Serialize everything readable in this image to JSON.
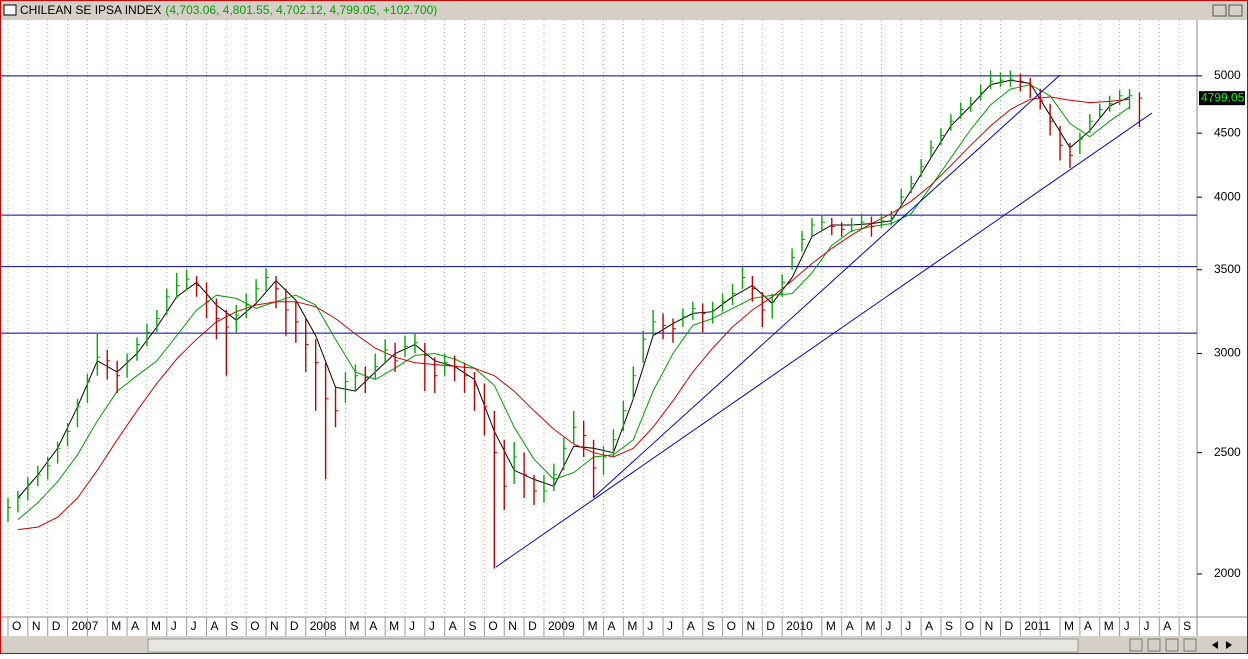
{
  "window": {
    "title": "CHILEAN SE IPSA INDEX",
    "quote": "(4,703.06, 4,801.55, 4,702.12, 4,799.05, +102.700)"
  },
  "chart_data": {
    "type": "ohlc",
    "log_scale": true,
    "last_price": 4799.05,
    "ylim": [
      1858,
      5541
    ],
    "yticks": [
      2000,
      2500,
      3000,
      3500,
      4000,
      4500,
      5000
    ],
    "up_color": "#00a800",
    "down_color": "#c00000",
    "hline_color": "#000099",
    "hlines": [
      5000,
      3870,
      3520,
      3115
    ],
    "x_labels": [
      "O",
      "N",
      "D",
      "2007",
      null,
      "M",
      "A",
      "M",
      "J",
      "J",
      "A",
      "S",
      "O",
      "N",
      "D",
      "2008",
      null,
      "M",
      "A",
      "M",
      "J",
      "J",
      "A",
      "S",
      "O",
      "N",
      "D",
      "2009",
      null,
      "M",
      "A",
      "M",
      "J",
      "J",
      "A",
      "S",
      "O",
      "N",
      "D",
      "2010",
      null,
      "M",
      "A",
      "M",
      "J",
      "J",
      "A",
      "S",
      "O",
      "N",
      "D",
      "2011",
      null,
      "M",
      "A",
      "M",
      "J",
      "J",
      "A",
      "S"
    ],
    "close": [
      2260,
      2300,
      2360,
      2400,
      2440,
      2520,
      2600,
      2720,
      2850,
      2980,
      2960,
      2880,
      2960,
      3050,
      3120,
      3200,
      3330,
      3400,
      3440,
      3400,
      3300,
      3200,
      3150,
      3220,
      3280,
      3380,
      3450,
      3380,
      3250,
      3180,
      3050,
      2950,
      2760,
      2700,
      2850,
      2880,
      2870,
      2930,
      3020,
      2960,
      3040,
      3060,
      2990,
      2880,
      2950,
      2930,
      2880,
      2830,
      2720,
      2500,
      2350,
      2480,
      2400,
      2330,
      2330,
      2400,
      2520,
      2620,
      2580,
      2430,
      2480,
      2560,
      2700,
      2880,
      3080,
      3180,
      3160,
      3140,
      3210,
      3260,
      3230,
      3250,
      3300,
      3350,
      3450,
      3380,
      3250,
      3300,
      3420,
      3580,
      3700,
      3800,
      3820,
      3790,
      3770,
      3800,
      3820,
      3790,
      3830,
      3850,
      4000,
      4100,
      4230,
      4380,
      4480,
      4600,
      4700,
      4750,
      4850,
      4950,
      4960,
      4970,
      4950,
      4900,
      4780,
      4600,
      4400,
      4320,
      4450,
      4600,
      4700,
      4750,
      4820,
      4820,
      4799
    ],
    "high": [
      2300,
      2330,
      2390,
      2440,
      2480,
      2550,
      2640,
      2760,
      2890,
      3110,
      3020,
      2960,
      3000,
      3090,
      3170,
      3250,
      3380,
      3480,
      3500,
      3460,
      3420,
      3320,
      3250,
      3280,
      3350,
      3440,
      3510,
      3460,
      3380,
      3300,
      3200,
      3080,
      2950,
      2820,
      2900,
      2940,
      2930,
      3000,
      3080,
      3060,
      3100,
      3110,
      3060,
      2980,
      3000,
      2990,
      2950,
      2900,
      2840,
      2700,
      2560,
      2550,
      2500,
      2400,
      2400,
      2450,
      2570,
      2700,
      2650,
      2560,
      2530,
      2610,
      2750,
      2930,
      3130,
      3250,
      3230,
      3200,
      3260,
      3300,
      3290,
      3300,
      3350,
      3410,
      3520,
      3460,
      3360,
      3350,
      3470,
      3640,
      3760,
      3850,
      3870,
      3850,
      3820,
      3850,
      3880,
      3860,
      3880,
      3900,
      4060,
      4160,
      4290,
      4440,
      4540,
      4660,
      4760,
      4810,
      4920,
      5050,
      5030,
      5050,
      5020,
      4980,
      4880,
      4750,
      4560,
      4420,
      4500,
      4660,
      4750,
      4820,
      4870,
      4880,
      4850
    ],
    "low": [
      2200,
      2240,
      2290,
      2350,
      2380,
      2450,
      2530,
      2620,
      2740,
      2880,
      2860,
      2790,
      2870,
      2960,
      3040,
      3120,
      3220,
      3320,
      3370,
      3330,
      3200,
      3080,
      2880,
      3120,
      3200,
      3300,
      3360,
      3260,
      3100,
      3060,
      2900,
      2700,
      2380,
      2620,
      2740,
      2800,
      2790,
      2860,
      2950,
      2900,
      2980,
      3000,
      2800,
      2790,
      2880,
      2850,
      2790,
      2700,
      2580,
      2020,
      2250,
      2360,
      2300,
      2270,
      2280,
      2330,
      2420,
      2540,
      2480,
      2300,
      2400,
      2480,
      2600,
      2760,
      2950,
      3100,
      3080,
      3060,
      3150,
      3190,
      3120,
      3170,
      3240,
      3280,
      3380,
      3300,
      3150,
      3200,
      3330,
      3500,
      3620,
      3720,
      3760,
      3730,
      3720,
      3750,
      3770,
      3720,
      3780,
      3800,
      3920,
      4030,
      4150,
      4300,
      4400,
      4520,
      4620,
      4680,
      4780,
      4880,
      4900,
      4900,
      4860,
      4800,
      4700,
      4480,
      4280,
      4220,
      4330,
      4500,
      4620,
      4680,
      4740,
      4700,
      4550
    ],
    "moving_averages": [
      {
        "color": "#000000",
        "values": [
          2300,
          2400,
          2520,
          2720,
          2960,
          2900,
          3000,
          3150,
          3330,
          3420,
          3280,
          3190,
          3290,
          3430,
          3310,
          3100,
          2820,
          2800,
          2900,
          3000,
          3050,
          2960,
          2930,
          2860,
          2600,
          2420,
          2380,
          2350,
          2530,
          2520,
          2500,
          2760,
          3100,
          3170,
          3230,
          3240,
          3330,
          3400,
          3290,
          3450,
          3720,
          3800,
          3800,
          3810,
          3830,
          4050,
          4300,
          4560,
          4730,
          4920,
          4960,
          4930,
          4650,
          4380,
          4520,
          4730,
          4810
        ]
      },
      {
        "color": "#00a000",
        "values": [
          2210,
          2280,
          2370,
          2490,
          2650,
          2800,
          2880,
          2960,
          3100,
          3250,
          3340,
          3320,
          3260,
          3300,
          3340,
          3280,
          3080,
          2900,
          2860,
          2920,
          2990,
          3000,
          2970,
          2920,
          2830,
          2620,
          2470,
          2380,
          2410,
          2480,
          2490,
          2560,
          2800,
          3000,
          3160,
          3200,
          3260,
          3320,
          3340,
          3350,
          3480,
          3660,
          3760,
          3790,
          3810,
          3880,
          4080,
          4300,
          4530,
          4740,
          4880,
          4920,
          4820,
          4580,
          4470,
          4600,
          4720
        ]
      },
      {
        "color": "#d00000",
        "values": [
          2170,
          2180,
          2220,
          2300,
          2420,
          2560,
          2700,
          2840,
          2970,
          3080,
          3180,
          3240,
          3280,
          3300,
          3300,
          3270,
          3200,
          3110,
          3030,
          2980,
          2950,
          2940,
          2930,
          2920,
          2880,
          2800,
          2700,
          2610,
          2540,
          2500,
          2480,
          2520,
          2620,
          2750,
          2900,
          3030,
          3150,
          3250,
          3330,
          3430,
          3540,
          3640,
          3730,
          3810,
          3880,
          3970,
          4090,
          4240,
          4400,
          4560,
          4700,
          4790,
          4810,
          4780,
          4760,
          4770,
          4790
        ]
      }
    ]
  }
}
